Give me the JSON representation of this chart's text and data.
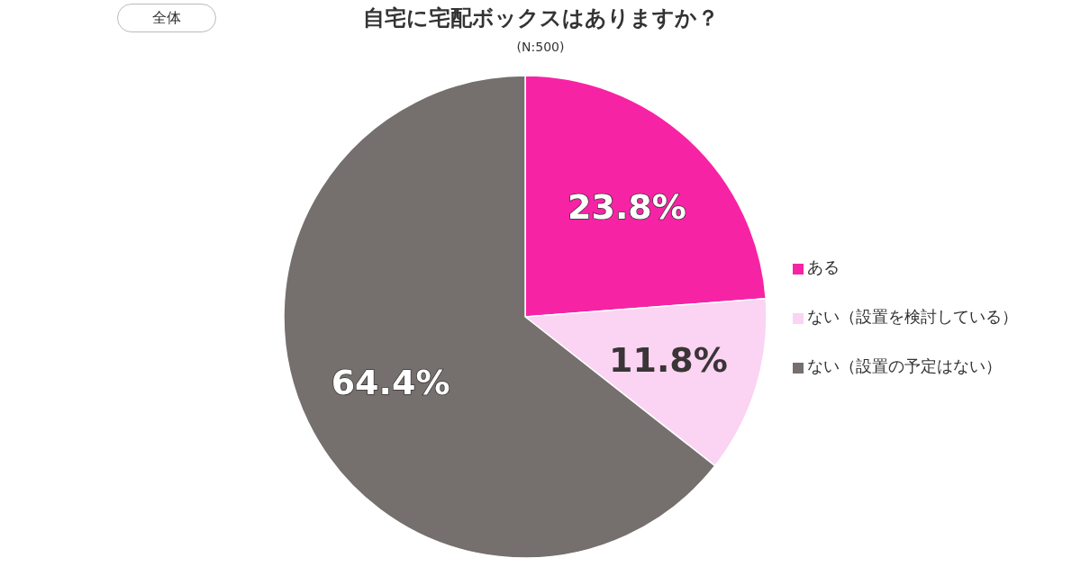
{
  "chart_data": {
    "type": "pie",
    "title": "自宅に宅配ボックスはありますか？",
    "subtitle": "(N:500)",
    "annotations": [
      "全体"
    ],
    "categories": [
      "ある",
      "ない（設置を検討している）",
      "ない（設置の予定はない）"
    ],
    "values": [
      23.8,
      11.8,
      64.4
    ],
    "colors": [
      "#f723a5",
      "#fad4f2",
      "#75706d"
    ],
    "value_labels": [
      "23.8%",
      "11.8%",
      "64.4%"
    ],
    "legend": "right"
  }
}
